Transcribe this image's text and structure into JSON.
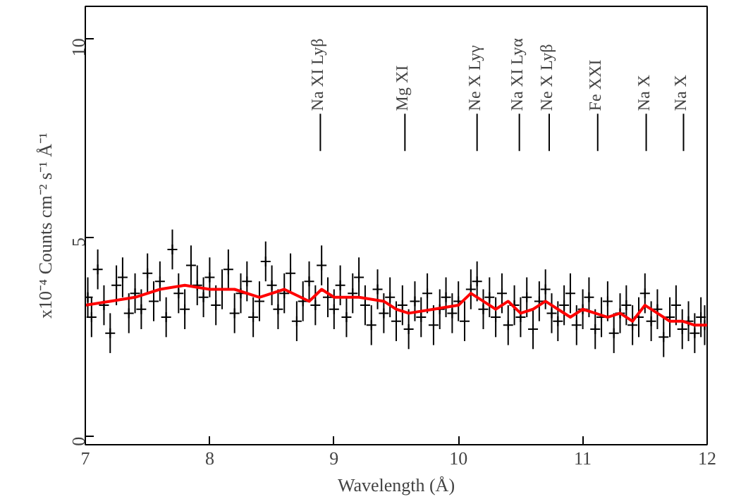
{
  "chart_data": {
    "type": "scatter",
    "xlabel": "Wavelength (Å)",
    "ylabel": "x10⁻⁴ Counts cm⁻² s⁻¹ Å⁻¹",
    "xlim": [
      7,
      12
    ],
    "ylim": [
      -0.2,
      10.8
    ],
    "xticks": [
      7,
      8,
      9,
      10,
      11,
      12
    ],
    "yticks": [
      0,
      5,
      10
    ],
    "grid": false,
    "series": [
      {
        "color": "#000000",
        "marker": "cross",
        "x": [
          7.02,
          7.05,
          7.1,
          7.15,
          7.2,
          7.25,
          7.3,
          7.35,
          7.4,
          7.45,
          7.5,
          7.55,
          7.6,
          7.65,
          7.7,
          7.75,
          7.8,
          7.85,
          7.9,
          7.95,
          8.0,
          8.05,
          8.1,
          8.15,
          8.2,
          8.25,
          8.3,
          8.35,
          8.4,
          8.45,
          8.5,
          8.55,
          8.6,
          8.65,
          8.7,
          8.75,
          8.8,
          8.85,
          8.9,
          8.95,
          9.0,
          9.05,
          9.1,
          9.15,
          9.2,
          9.25,
          9.3,
          9.35,
          9.4,
          9.45,
          9.5,
          9.55,
          9.6,
          9.65,
          9.7,
          9.75,
          9.8,
          9.85,
          9.9,
          9.95,
          10.0,
          10.05,
          10.1,
          10.15,
          10.2,
          10.25,
          10.3,
          10.35,
          10.4,
          10.45,
          10.5,
          10.55,
          10.6,
          10.65,
          10.7,
          10.75,
          10.8,
          10.85,
          10.9,
          10.95,
          11.0,
          11.05,
          11.1,
          11.15,
          11.2,
          11.25,
          11.3,
          11.35,
          11.4,
          11.45,
          11.5,
          11.55,
          11.6,
          11.65,
          11.7,
          11.75,
          11.8,
          11.85,
          11.9,
          11.95,
          11.98
        ],
        "values": [
          3.5,
          3.0,
          4.2,
          3.3,
          2.6,
          3.8,
          4.0,
          3.1,
          3.6,
          3.2,
          4.1,
          3.4,
          3.9,
          3.0,
          4.7,
          3.6,
          3.2,
          4.3,
          3.8,
          3.5,
          4.0,
          3.3,
          3.7,
          4.2,
          3.1,
          3.6,
          3.9,
          3.0,
          3.4,
          4.4,
          3.8,
          3.2,
          3.6,
          4.1,
          2.9,
          3.4,
          3.9,
          3.3,
          4.3,
          3.5,
          3.2,
          3.8,
          3.0,
          3.6,
          4.0,
          3.3,
          2.8,
          3.7,
          3.1,
          3.5,
          2.9,
          3.3,
          2.7,
          3.4,
          3.0,
          3.6,
          2.8,
          3.2,
          3.5,
          3.1,
          3.4,
          2.9,
          3.7,
          3.9,
          3.2,
          3.5,
          3.0,
          3.6,
          2.8,
          3.3,
          3.0,
          3.5,
          2.7,
          3.4,
          3.7,
          3.1,
          2.9,
          3.3,
          3.6,
          2.8,
          3.2,
          3.5,
          2.7,
          3.0,
          3.4,
          2.6,
          3.1,
          3.3,
          2.8,
          3.0,
          3.6,
          2.9,
          3.2,
          2.5,
          3.0,
          3.3,
          2.7,
          2.9,
          2.6,
          3.0,
          2.8
        ],
        "errors": [
          0.5,
          0.5,
          0.5,
          0.5,
          0.5,
          0.5,
          0.5,
          0.5,
          0.5,
          0.5,
          0.5,
          0.5,
          0.5,
          0.5,
          0.5,
          0.5,
          0.5,
          0.5,
          0.5,
          0.5,
          0.5,
          0.5,
          0.5,
          0.5,
          0.5,
          0.5,
          0.5,
          0.5,
          0.5,
          0.5,
          0.5,
          0.5,
          0.5,
          0.5,
          0.5,
          0.5,
          0.5,
          0.5,
          0.5,
          0.5,
          0.5,
          0.5,
          0.5,
          0.5,
          0.5,
          0.5,
          0.5,
          0.5,
          0.5,
          0.5,
          0.5,
          0.5,
          0.5,
          0.5,
          0.5,
          0.5,
          0.5,
          0.5,
          0.5,
          0.5,
          0.5,
          0.5,
          0.5,
          0.5,
          0.5,
          0.5,
          0.5,
          0.5,
          0.5,
          0.5,
          0.5,
          0.5,
          0.5,
          0.5,
          0.5,
          0.5,
          0.5,
          0.5,
          0.5,
          0.5,
          0.5,
          0.5,
          0.5,
          0.5,
          0.5,
          0.5,
          0.5,
          0.5,
          0.5,
          0.5,
          0.5,
          0.5,
          0.5,
          0.5,
          0.5,
          0.5,
          0.5,
          0.5,
          0.5,
          0.5,
          0.5
        ]
      },
      {
        "type": "line",
        "color": "#ff0000",
        "marker": "none",
        "x": [
          7.0,
          7.2,
          7.4,
          7.6,
          7.8,
          8.0,
          8.2,
          8.4,
          8.6,
          8.8,
          8.9,
          9.0,
          9.2,
          9.4,
          9.5,
          9.6,
          9.8,
          10.0,
          10.1,
          10.2,
          10.3,
          10.4,
          10.5,
          10.6,
          10.7,
          10.8,
          10.9,
          11.0,
          11.1,
          11.2,
          11.3,
          11.4,
          11.5,
          11.6,
          11.7,
          11.8,
          11.9,
          12.0
        ],
        "values": [
          3.3,
          3.4,
          3.5,
          3.7,
          3.8,
          3.7,
          3.7,
          3.5,
          3.7,
          3.4,
          3.7,
          3.5,
          3.5,
          3.4,
          3.2,
          3.1,
          3.2,
          3.3,
          3.6,
          3.4,
          3.2,
          3.4,
          3.1,
          3.2,
          3.4,
          3.2,
          3.0,
          3.2,
          3.1,
          3.0,
          3.1,
          2.9,
          3.3,
          3.1,
          2.9,
          2.9,
          2.8,
          2.8
        ]
      }
    ],
    "ref_lines": [
      {
        "axis": "x",
        "value": 8.89,
        "label": "Na XI Lyβ"
      },
      {
        "axis": "x",
        "value": 9.57,
        "label": "Mg XI"
      },
      {
        "axis": "x",
        "value": 10.15,
        "label": "Ne X Lyγ"
      },
      {
        "axis": "x",
        "value": 10.49,
        "label": "Na XI Lyα"
      },
      {
        "axis": "x",
        "value": 10.73,
        "label": "Ne X Lyβ"
      },
      {
        "axis": "x",
        "value": 11.12,
        "label": "Fe XXI"
      },
      {
        "axis": "x",
        "value": 11.51,
        "label": "Na X"
      },
      {
        "axis": "x",
        "value": 11.81,
        "label": "Na X"
      }
    ]
  }
}
